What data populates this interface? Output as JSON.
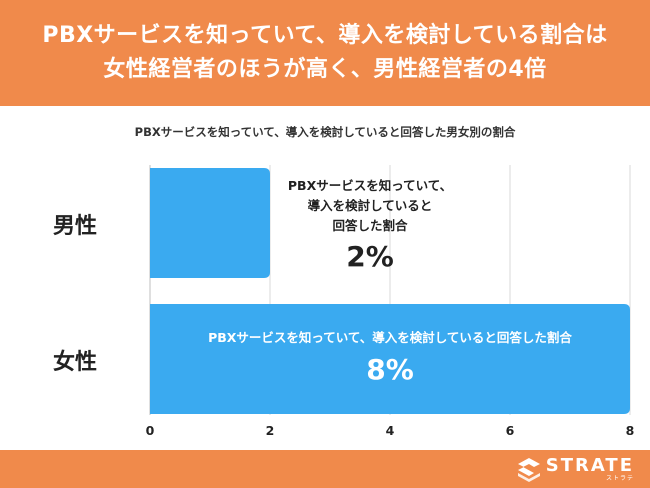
{
  "header": {
    "line1": "PBXサービスを知っていて、導入を検討している割合は",
    "line2": "女性経営者のほうが高く、男性経営者の4倍"
  },
  "chart_data": {
    "type": "bar",
    "orientation": "horizontal",
    "title": "PBXサービスを知っていて、導入を検討していると回答した男女別の割合",
    "categories": [
      "男性",
      "女性"
    ],
    "values": [
      2,
      8
    ],
    "value_labels": [
      "2%",
      "8%"
    ],
    "bar_labels": [
      "PBXサービスを知っていて、\n導入を検討していると\n回答した割合",
      "PBXサービスを知っていて、導入を検討していると回答した割合"
    ],
    "xlim": [
      0,
      8
    ],
    "xticks": [
      "0",
      "2",
      "4",
      "6",
      "8"
    ],
    "grid": true,
    "bar_color": "#3aaaf0"
  },
  "footer": {
    "logo_name": "STRATE",
    "logo_sub": "ストラテ"
  },
  "colors": {
    "brand": "#f08a4b",
    "grid": "#d9d9d9"
  }
}
